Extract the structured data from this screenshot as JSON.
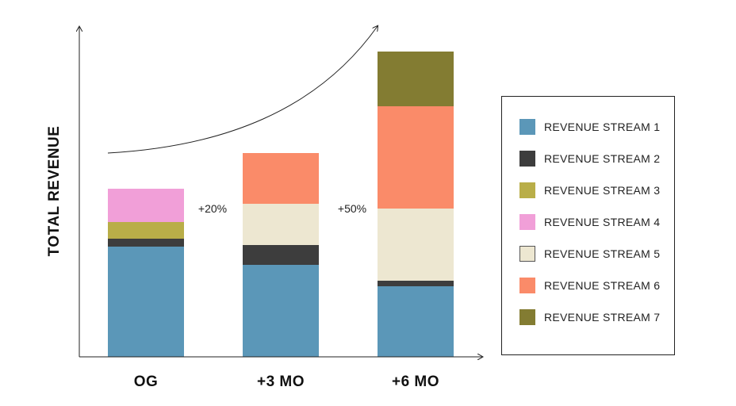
{
  "chart_data": {
    "type": "bar",
    "stacked": true,
    "ylabel": "TOTAL REVENUE",
    "xlabel": "",
    "categories": [
      "OG",
      "+3 MO",
      "+6 MO"
    ],
    "series": [
      {
        "name": "REVENUE STREAM 1",
        "color": "#5b97b8",
        "values": [
          139,
          116,
          89
        ]
      },
      {
        "name": "REVENUE STREAM 2",
        "color": "#3d3d3d",
        "values": [
          10,
          25,
          7
        ]
      },
      {
        "name": "REVENUE STREAM 3",
        "color": "#b9ae48",
        "values": [
          21,
          0,
          0
        ]
      },
      {
        "name": "REVENUE STREAM 4",
        "color": "#f19fd8",
        "values": [
          42,
          0,
          0
        ]
      },
      {
        "name": "REVENUE STREAM 5",
        "color": "#ede7d1",
        "values": [
          0,
          52,
          91
        ]
      },
      {
        "name": "REVENUE STREAM 6",
        "color": "#fa8b69",
        "values": [
          0,
          64,
          129
        ]
      },
      {
        "name": "REVENUE STREAM 7",
        "color": "#837c32",
        "values": [
          0,
          0,
          69
        ]
      }
    ],
    "ylim": [
      0,
      415
    ],
    "annotations": [
      "+20%",
      "+50%"
    ],
    "grid": false,
    "legend_position": "right",
    "axis_color": "#222222"
  }
}
